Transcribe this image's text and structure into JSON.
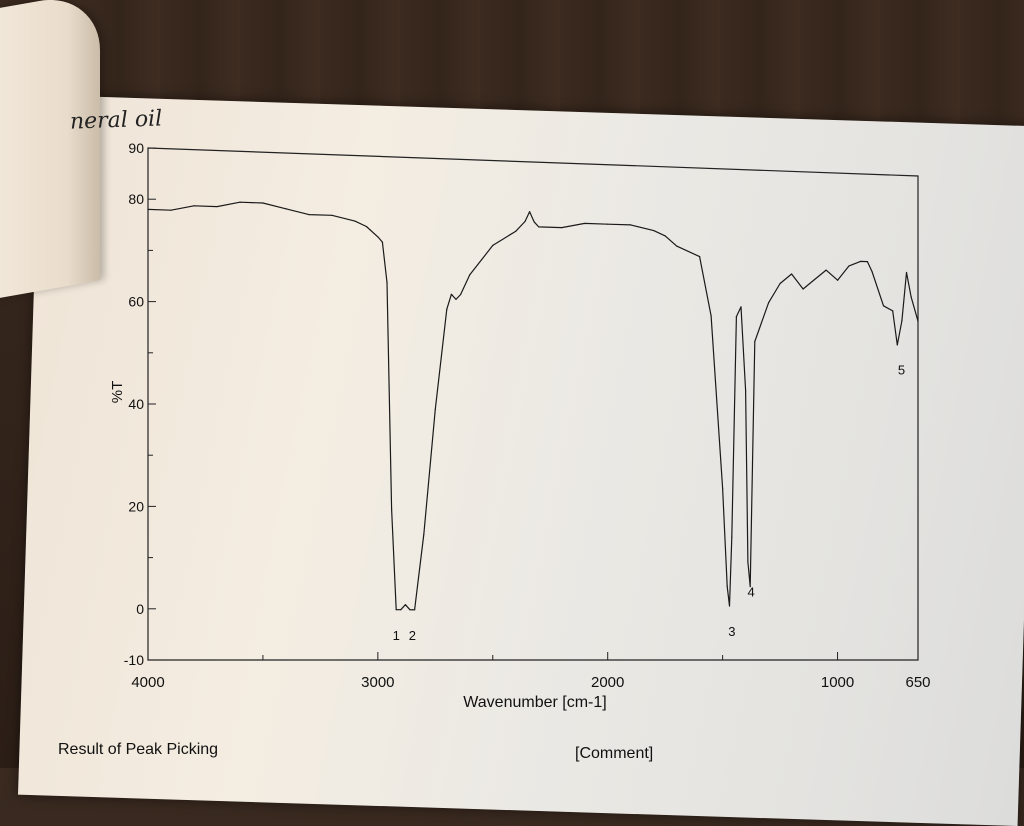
{
  "annotation": {
    "handwritten_title": "neral oil"
  },
  "footer": {
    "left_label": "Result of Peak Picking",
    "right_label": "[Comment]"
  },
  "chart_data": {
    "type": "line",
    "ylabel": "%T",
    "xlabel": "Wavenumber [cm-1]",
    "xlim": [
      4000,
      650
    ],
    "ylim": [
      -10,
      90
    ],
    "x_ticks": [
      "4000",
      "3000",
      "2000",
      "1000",
      "650"
    ],
    "y_ticks": [
      "90",
      "80",
      "60",
      "40",
      "20",
      "0",
      "-10"
    ],
    "series": [
      {
        "x": [
          4000,
          3900,
          3800,
          3700,
          3600,
          3500,
          3400,
          3300,
          3200,
          3100,
          3050,
          3000,
          2980,
          2960,
          2940,
          2920,
          2900,
          2880,
          2860,
          2850,
          2840,
          2800,
          2750,
          2700,
          2680,
          2660,
          2640,
          2600,
          2500,
          2400,
          2360,
          2340,
          2320,
          2300,
          2200,
          2100,
          2000,
          1900,
          1800,
          1750,
          1700,
          1600,
          1550,
          1500,
          1480,
          1470,
          1460,
          1440,
          1420,
          1400,
          1390,
          1380,
          1370,
          1360,
          1300,
          1250,
          1200,
          1150,
          1100,
          1050,
          1000,
          950,
          900,
          870,
          850,
          800,
          760,
          740,
          720,
          700,
          680,
          650
        ],
        "y": [
          78,
          78,
          79,
          79,
          80,
          80,
          79,
          78,
          78,
          77,
          76,
          74,
          73,
          65,
          20,
          0,
          0,
          1,
          0,
          0,
          0,
          15,
          40,
          60,
          63,
          62,
          63,
          67,
          73,
          76,
          78,
          80,
          78,
          77,
          77,
          78,
          78,
          78,
          77,
          76,
          74,
          72,
          60,
          25,
          5,
          1,
          15,
          60,
          62,
          45,
          10,
          5,
          30,
          55,
          63,
          67,
          69,
          66,
          68,
          70,
          68,
          71,
          72,
          72,
          70,
          63,
          62,
          55,
          60,
          70,
          65,
          60
        ]
      }
    ],
    "peak_labels": [
      {
        "label": "1",
        "x": 2920,
        "y": -2
      },
      {
        "label": "2",
        "x": 2850,
        "y": -2
      },
      {
        "label": "3",
        "x": 1460,
        "y": -1
      },
      {
        "label": "4",
        "x": 1376,
        "y": 7
      },
      {
        "label": "5",
        "x": 722,
        "y": 53
      }
    ],
    "grid": false
  }
}
